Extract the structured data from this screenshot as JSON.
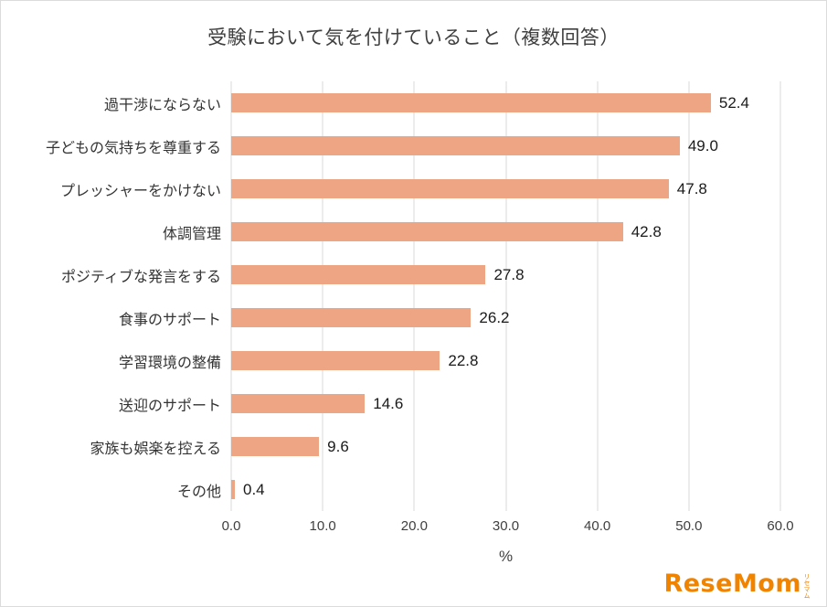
{
  "title": "受験において気を付けていること（複数回答）",
  "chart_data": {
    "type": "bar",
    "orientation": "horizontal",
    "title": "受験において気を付けていること（複数回答）",
    "categories": [
      "過干渉にならない",
      "子どもの気持ちを尊重する",
      "プレッシャーをかけない",
      "体調管理",
      "ポジティブな発言をする",
      "食事のサポート",
      "学習環境の整備",
      "送迎のサポート",
      "家族も娯楽を控える",
      "その他"
    ],
    "values": [
      52.4,
      49.0,
      47.8,
      42.8,
      27.8,
      26.2,
      22.8,
      14.6,
      9.6,
      0.4
    ],
    "value_labels": [
      "52.4",
      "49.0",
      "47.8",
      "42.8",
      "27.8",
      "26.2",
      "22.8",
      "14.6",
      "9.6",
      "0.4"
    ],
    "xlabel": "%",
    "xlim": [
      0,
      60
    ],
    "xticks": [
      "0.0",
      "10.0",
      "20.0",
      "30.0",
      "40.0",
      "50.0",
      "60.0"
    ],
    "bar_color": "#eda584",
    "gridline_color": "#d9d9d9",
    "grid": "vertical-only",
    "legend": "none"
  },
  "branding": {
    "logo_text": "ReseMom",
    "logo_sub": "リセマム",
    "logo_color": "#f08300"
  }
}
